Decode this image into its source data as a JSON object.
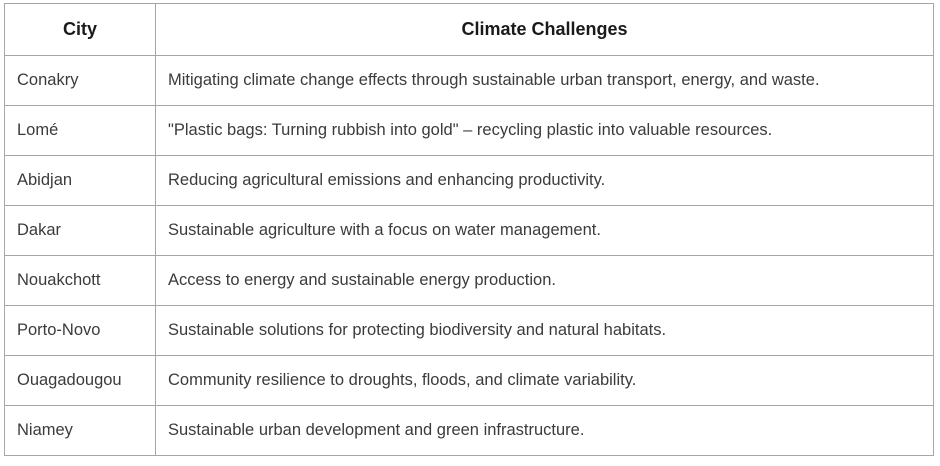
{
  "table": {
    "headers": {
      "city": "City",
      "challenges": "Climate Challenges"
    },
    "rows": [
      {
        "city": "Conakry",
        "challenge": "Mitigating climate change effects through sustainable urban transport, energy, and waste."
      },
      {
        "city": "Lomé",
        "challenge": "\"Plastic bags: Turning rubbish into gold\" – recycling plastic into valuable resources."
      },
      {
        "city": "Abidjan",
        "challenge": "Reducing agricultural emissions and enhancing productivity."
      },
      {
        "city": "Dakar",
        "challenge": "Sustainable agriculture with a focus on water management."
      },
      {
        "city": "Nouakchott",
        "challenge": "Access to energy and sustainable energy production."
      },
      {
        "city": "Porto-Novo",
        "challenge": "Sustainable solutions for protecting biodiversity and natural habitats."
      },
      {
        "city": "Ouagadougou",
        "challenge": "Community resilience to droughts, floods, and climate variability."
      },
      {
        "city": "Niamey",
        "challenge": "Sustainable urban development and green infrastructure."
      }
    ],
    "colors": {
      "border": "#a6a6a6",
      "header_text": "#1a1a1a",
      "body_text": "#3b3b3b",
      "background": "#ffffff"
    }
  }
}
